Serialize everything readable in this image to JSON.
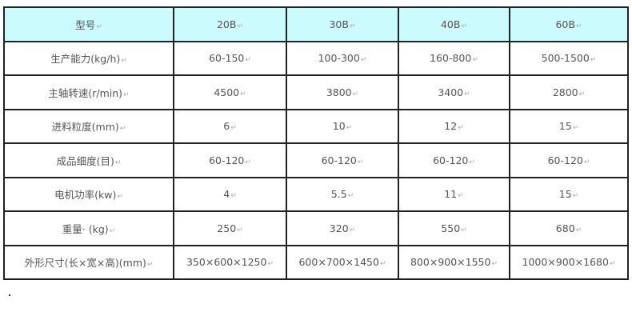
{
  "table": {
    "header": [
      "型号",
      "20B",
      "30B",
      "40B",
      "60B"
    ],
    "rows": [
      [
        "生产能力(kg/h)",
        "60-150",
        "100-300",
        "160-800",
        "500-1500"
      ],
      [
        "主轴转速(r/min)",
        "4500",
        "3800",
        "3400",
        "2800"
      ],
      [
        "进料粒度(mm)",
        "6",
        "10",
        "12",
        "15"
      ],
      [
        "成品细度(目)",
        "60-120",
        "60-120",
        "60-120",
        "60-120"
      ],
      [
        "电机功率(kw)",
        "4",
        "5.5",
        "11",
        "15"
      ],
      [
        "重量· (kg)",
        "250",
        "320",
        "550",
        "680"
      ],
      [
        "外形尺寸(长×宽×高)(mm)",
        "350×600×1250",
        "600×700×1450",
        "800×900×1550",
        "1000×900×1680"
      ]
    ],
    "header_color": "#ccfbfd"
  }
}
